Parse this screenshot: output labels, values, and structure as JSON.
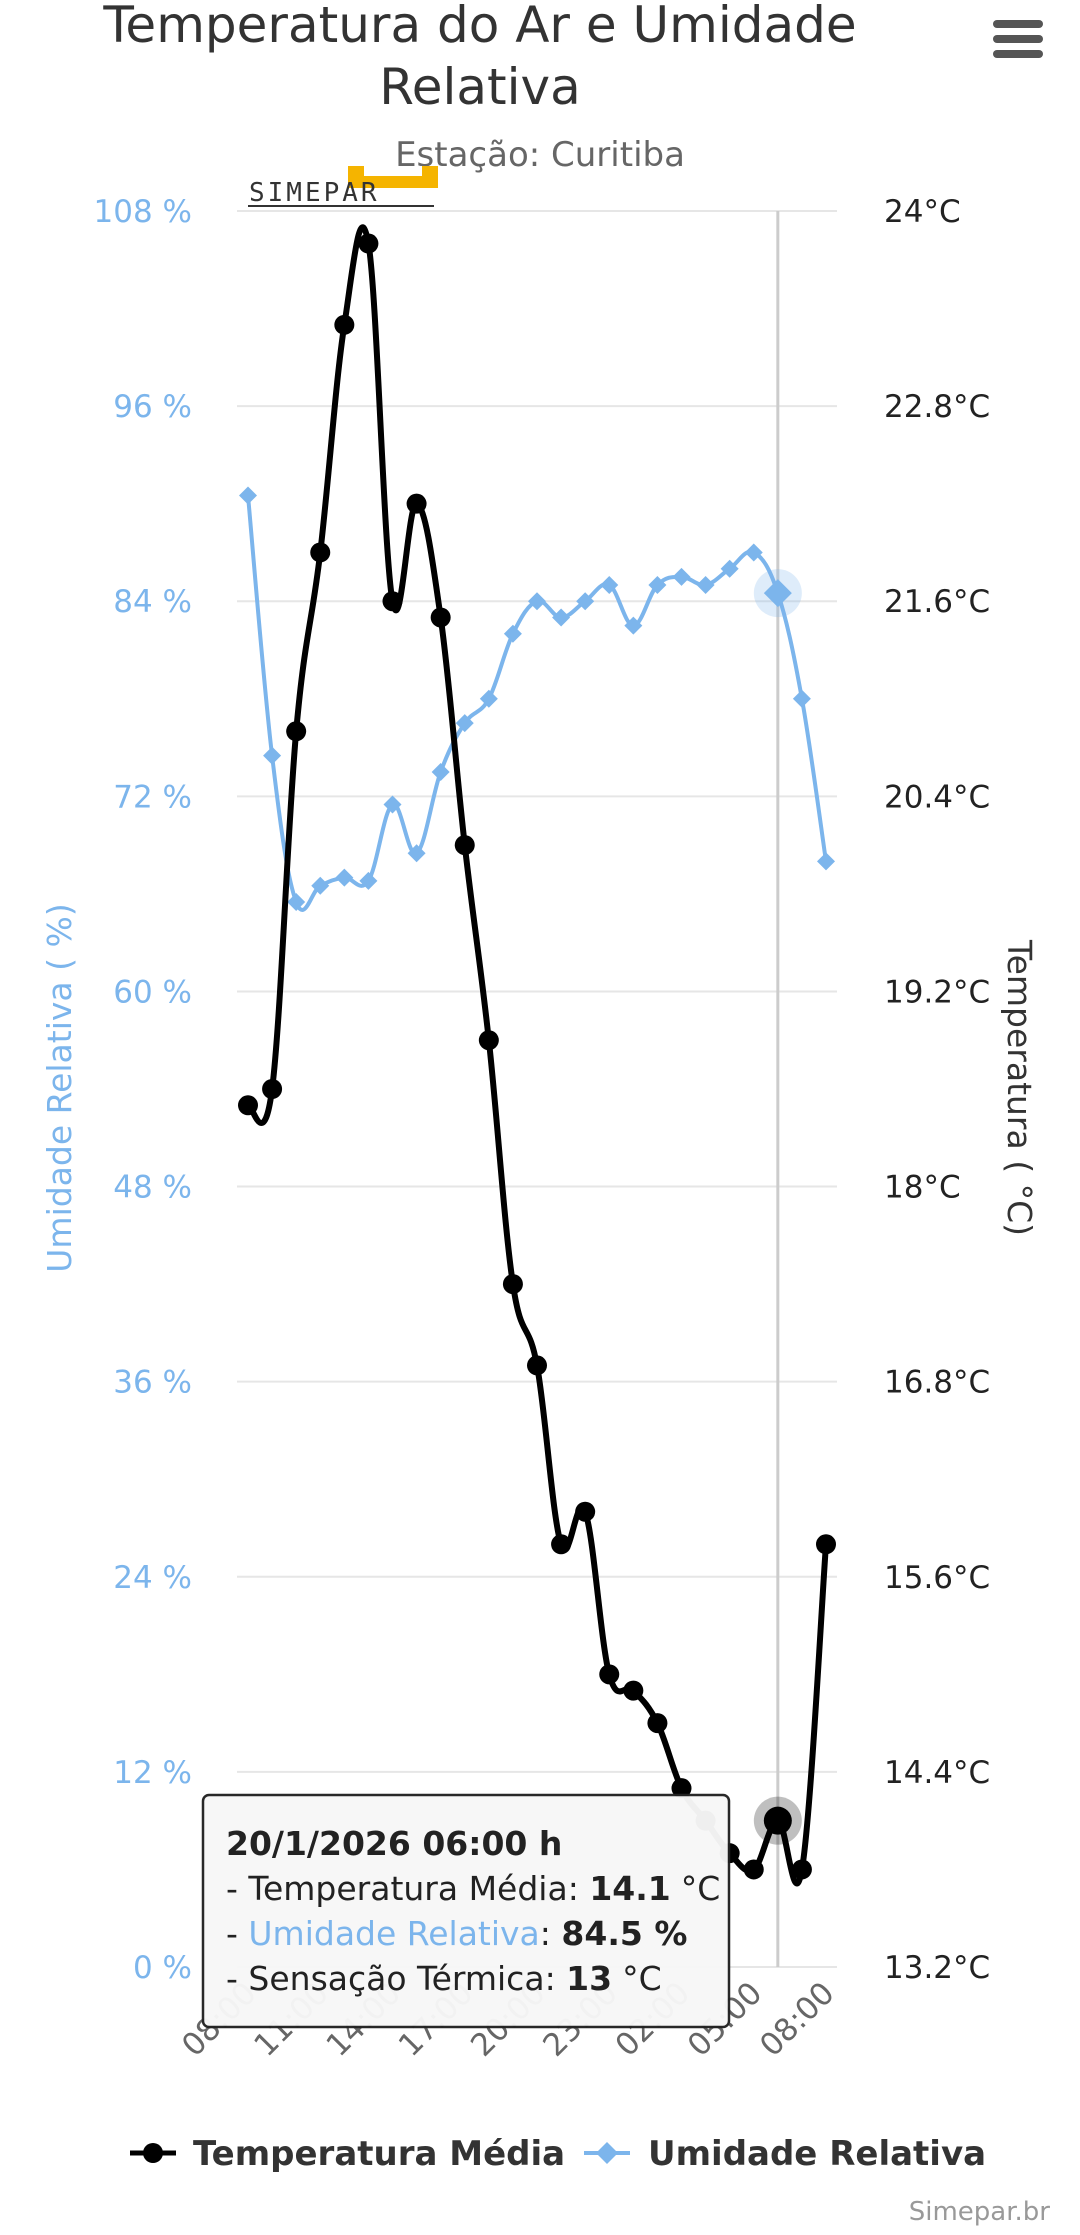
{
  "header": {
    "menu_icon": "hamburger-menu-icon"
  },
  "logo": {
    "text": "SIMEPAR",
    "accent_color": "#f5b400"
  },
  "credits": "Simepar.br",
  "tooltip": {
    "title": "20/1/2026 06:00 h",
    "temp_label": "Temperatura Média",
    "temp_value": "14.1",
    "temp_unit": "°C",
    "hum_label": "Umidade Relativa",
    "hum_value": "84.5 %",
    "feel_label": "Sensação Térmica",
    "feel_value": "13",
    "feel_unit": "°C",
    "prefix": "- ",
    "sep": ": "
  },
  "chart_data": {
    "type": "line",
    "title": "Temperatura do Ar e Umidade Relativa",
    "title_lines": [
      "Temperatura do Ar e Umidade",
      "Relativa"
    ],
    "subtitle": "Estação: Curitiba",
    "x_tick_labels": [
      "08:00",
      "11:00",
      "14:00",
      "17:00",
      "20:00",
      "23:00",
      "02:00",
      "05:00",
      "08:00"
    ],
    "x_hours": [
      0,
      1,
      2,
      3,
      4,
      5,
      6,
      7,
      8,
      9,
      10,
      11,
      12,
      13,
      14,
      15,
      16,
      17,
      18,
      19,
      20,
      21,
      22,
      23,
      24
    ],
    "highlight_index": 22,
    "y_left": {
      "title": "Umidade Relativa ( %)",
      "min": 0,
      "max": 108,
      "tick_interval": 12,
      "tick_labels": [
        "0 %",
        "12 %",
        "24 %",
        "36 %",
        "48 %",
        "60 %",
        "72 %",
        "84 %",
        "96 %",
        "108 %"
      ]
    },
    "y_right": {
      "title": "Temperatura ( °C)",
      "min": 13.2,
      "max": 24,
      "tick_interval": 1.2,
      "tick_labels": [
        "13.2°C",
        "14.4°C",
        "15.6°C",
        "16.8°C",
        "18°C",
        "19.2°C",
        "20.4°C",
        "21.6°C",
        "22.8°C",
        "24°C"
      ]
    },
    "series": [
      {
        "name": "Temperatura Média",
        "color": "#000000",
        "axis": "right",
        "values": [
          18.5,
          18.6,
          20.8,
          21.9,
          23.3,
          23.8,
          21.6,
          22.2,
          21.5,
          20.1,
          18.9,
          17.4,
          16.9,
          15.8,
          16.0,
          15.0,
          14.9,
          14.7,
          14.3,
          14.1,
          13.9,
          13.8,
          14.1,
          13.8,
          15.8
        ]
      },
      {
        "name": "Umidade Relativa",
        "color": "#7cb5ec",
        "axis": "left",
        "values": [
          90.5,
          74.5,
          65.5,
          66.5,
          67.0,
          66.8,
          71.5,
          68.5,
          73.5,
          76.5,
          78.0,
          82.0,
          84.0,
          83.0,
          84.0,
          85.0,
          82.5,
          85.0,
          85.5,
          85.0,
          86.0,
          87.0,
          84.5,
          78.0,
          68.0
        ]
      }
    ],
    "legend": [
      "Temperatura Média",
      "Umidade Relativa"
    ],
    "legend_position": "bottom-center"
  }
}
